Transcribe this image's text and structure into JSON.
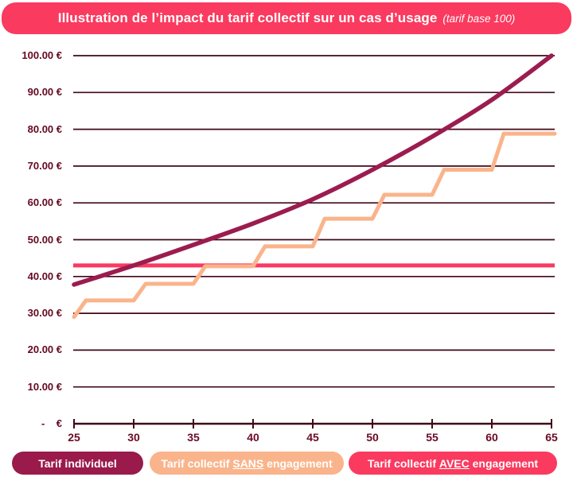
{
  "header": {
    "title": "Illustration de l’impact du tarif collectif sur un cas d’usage",
    "subtitle": "(tarif base 100)"
  },
  "chart_data": {
    "type": "line",
    "title": "Illustration de l’impact du tarif collectif sur un cas d’usage (tarif base 100)",
    "xlabel": "",
    "ylabel": "",
    "xlim": [
      25,
      65
    ],
    "ylim": [
      0,
      100
    ],
    "grid": "horizontal",
    "legend_position": "bottom",
    "x_ticks": [
      25,
      30,
      35,
      40,
      45,
      50,
      55,
      60,
      65
    ],
    "y_ticks": [
      {
        "value": 100,
        "label": "100.00 €"
      },
      {
        "value": 90,
        "label": "90.00 €"
      },
      {
        "value": 80,
        "label": "80.00 €"
      },
      {
        "value": 70,
        "label": "70.00 €"
      },
      {
        "value": 60,
        "label": "60.00 €"
      },
      {
        "value": 50,
        "label": "50.00 €"
      },
      {
        "value": 40,
        "label": "40.00 €"
      },
      {
        "value": 30,
        "label": "30.00 €"
      },
      {
        "value": 20,
        "label": "20.00 €"
      },
      {
        "value": 10,
        "label": "10.00 €"
      },
      {
        "value": 0,
        "label": "-    €"
      }
    ],
    "series": [
      {
        "name": "Tarif individuel",
        "type": "smooth-line",
        "color": "#9C1C50",
        "x": [
          25,
          30,
          35,
          40,
          45,
          50,
          55,
          60,
          65
        ],
        "values": [
          37.8,
          43,
          48.6,
          54.4,
          61,
          69,
          78,
          88,
          100
        ]
      },
      {
        "name": "Tarif collectif SANS engagement",
        "type": "step",
        "color": "#FAB48B",
        "plateaus": [
          {
            "from": 25,
            "to": 25,
            "value": 29
          },
          {
            "from": 26,
            "to": 30,
            "value": 33.5
          },
          {
            "from": 31,
            "to": 35,
            "value": 38
          },
          {
            "from": 36,
            "to": 40,
            "value": 42.8
          },
          {
            "from": 41,
            "to": 45,
            "value": 48.2
          },
          {
            "from": 46,
            "to": 50,
            "value": 55.7
          },
          {
            "from": 51,
            "to": 55,
            "value": 62.2
          },
          {
            "from": 56,
            "to": 60,
            "value": 69
          },
          {
            "from": 61,
            "to": 65,
            "value": 78.8
          }
        ]
      },
      {
        "name": "Tarif collectif AVEC engagement",
        "type": "constant-line",
        "color": "#FA3A60",
        "value": 43
      }
    ]
  },
  "colors": {
    "title_bg": "#FA3A5F",
    "grid": "#410818",
    "axis": "#410818",
    "y_label": "#65081F",
    "x_label": "#6B0A26"
  },
  "legend": {
    "items": [
      {
        "pre": "Tarif individuel",
        "emph": "",
        "post": "",
        "bg": "#9A1A4B"
      },
      {
        "pre": "Tarif collectif ",
        "emph": "SANS",
        "post": " engagement",
        "bg": "#FAB48B"
      },
      {
        "pre": "Tarif collectif ",
        "emph": "AVEC",
        "post": " engagement",
        "bg": "#FA3A5F"
      }
    ]
  }
}
